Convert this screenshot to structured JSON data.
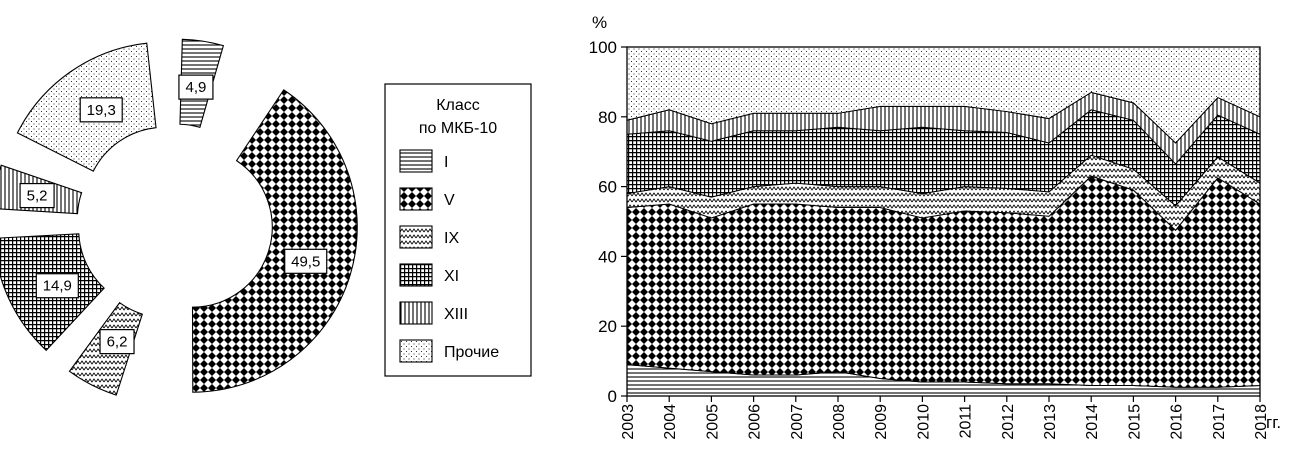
{
  "chart_data": [
    {
      "type": "pie",
      "variant": "exploded donut",
      "slices": [
        {
          "class": "I",
          "value": 4.9,
          "label": "4,9",
          "pattern": "hlines"
        },
        {
          "class": "V",
          "value": 49.5,
          "label": "49,5",
          "pattern": "checker"
        },
        {
          "class": "IX",
          "value": 6.2,
          "label": "6,2",
          "pattern": "zigzag"
        },
        {
          "class": "XI",
          "value": 14.9,
          "label": "14,9",
          "pattern": "grid"
        },
        {
          "class": "XIII",
          "value": 5.2,
          "label": "5,2",
          "pattern": "vlines"
        },
        {
          "class": "Прочие",
          "value": 19.3,
          "label": "19,3",
          "pattern": "dots"
        }
      ]
    },
    {
      "type": "area",
      "stacked": true,
      "ylabel": "%",
      "xunit": "гг.",
      "ylim": [
        0,
        100
      ],
      "yticks": [
        "0",
        "20",
        "40",
        "60",
        "80",
        "100"
      ],
      "x": [
        "2003",
        "2004",
        "2005",
        "2006",
        "2007",
        "2008",
        "2009",
        "2010",
        "2011",
        "2012",
        "2013",
        "2014",
        "2015",
        "2016",
        "2017",
        "2018"
      ],
      "series": [
        {
          "name": "I",
          "pattern": "hlines",
          "values": [
            9,
            8,
            7,
            6,
            6,
            7,
            5,
            4,
            4,
            3.5,
            3.5,
            3,
            3,
            2.5,
            2.5,
            3
          ]
        },
        {
          "name": "V",
          "pattern": "checker",
          "values": [
            45,
            47,
            44,
            49,
            49,
            47,
            49,
            47,
            49,
            49,
            48,
            60,
            56,
            45,
            60,
            52
          ]
        },
        {
          "name": "IX",
          "pattern": "zigzag",
          "values": [
            4,
            5,
            6,
            5,
            6,
            6,
            6,
            7,
            7,
            7,
            7,
            6,
            6,
            7,
            6,
            6
          ]
        },
        {
          "name": "XI",
          "pattern": "grid",
          "values": [
            17,
            16,
            16,
            16,
            15,
            17,
            16,
            19,
            16,
            16,
            14,
            13,
            14,
            12,
            12,
            14
          ]
        },
        {
          "name": "XIII",
          "pattern": "vlines",
          "values": [
            4,
            6,
            5,
            5,
            5,
            4,
            7,
            6,
            7,
            6,
            7,
            5,
            5,
            6,
            5,
            5
          ]
        },
        {
          "name": "Прочие",
          "pattern": "dots",
          "values": [
            21,
            18,
            22,
            19,
            19,
            19,
            17,
            17,
            17,
            18.5,
            20.5,
            13,
            16,
            27.5,
            14.5,
            20
          ]
        }
      ]
    }
  ],
  "legend": {
    "title_line1": "Класс",
    "title_line2": "по МКБ-10",
    "items": [
      {
        "label": "I",
        "pattern": "hlines"
      },
      {
        "label": "V",
        "pattern": "checker"
      },
      {
        "label": "IX",
        "pattern": "zigzag"
      },
      {
        "label": "XI",
        "pattern": "grid"
      },
      {
        "label": "XIII",
        "pattern": "vlines"
      },
      {
        "label": "Прочие",
        "pattern": "dots"
      }
    ]
  },
  "colors": {
    "ink": "#000000",
    "background": "#ffffff"
  }
}
